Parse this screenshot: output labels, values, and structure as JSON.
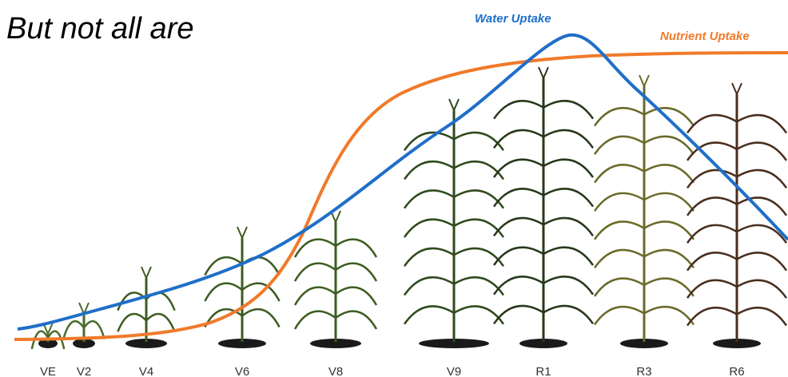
{
  "title": "But not all are",
  "curves": [
    {
      "label": "Water Uptake",
      "color": "#1f6fc8"
    },
    {
      "label": "Nutrient Uptake",
      "color": "#f07a2a"
    }
  ],
  "stages": [
    "VE",
    "V2",
    "V4",
    "V6",
    "V8",
    "V9",
    "R1",
    "R3",
    "R6"
  ]
}
